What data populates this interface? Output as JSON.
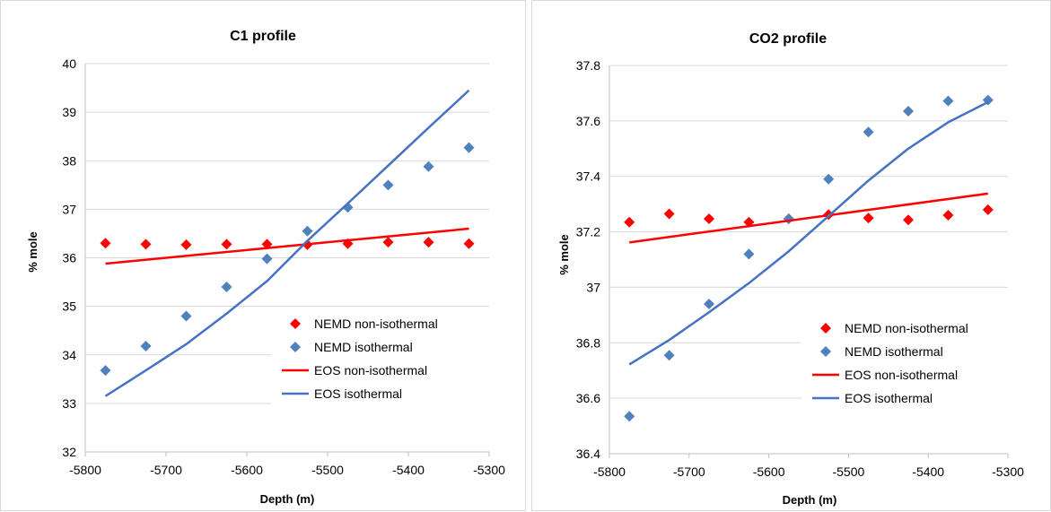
{
  "chart_data": [
    {
      "type": "scatter",
      "title": "C1 profile",
      "xlabel": "Depth (m)",
      "ylabel": "% mole",
      "xlim": [
        -5800,
        -5300
      ],
      "ylim": [
        32,
        40
      ],
      "xticks": [
        -5800,
        -5700,
        -5600,
        -5500,
        -5400,
        -5300
      ],
      "yticks": [
        32,
        33,
        34,
        35,
        36,
        37,
        38,
        39,
        40
      ],
      "xtick_labels": [
        "-5800",
        "-5700",
        "-5600",
        "-5500",
        "-5400",
        "-5300"
      ],
      "ytick_labels": [
        "32",
        "33",
        "34",
        "35",
        "36",
        "37",
        "38",
        "39",
        "40"
      ],
      "grid": "horizontal",
      "legend_position": "bottom-right",
      "series": [
        {
          "name": "NEMD non-isothermal",
          "kind": "marker",
          "marker": "diamond",
          "color": "#ff0000",
          "x": [
            -5775,
            -5725,
            -5675,
            -5625,
            -5575,
            -5525,
            -5475,
            -5425,
            -5375,
            -5325
          ],
          "y": [
            36.3,
            36.28,
            36.27,
            36.28,
            36.28,
            36.27,
            36.29,
            36.32,
            36.32,
            36.29
          ]
        },
        {
          "name": "NEMD isothermal",
          "kind": "marker",
          "marker": "diamond",
          "color": "#4f81bd",
          "x": [
            -5775,
            -5725,
            -5675,
            -5625,
            -5575,
            -5525,
            -5475,
            -5425,
            -5375,
            -5325
          ],
          "y": [
            33.68,
            34.18,
            34.8,
            35.4,
            35.98,
            36.55,
            37.04,
            37.5,
            37.88,
            38.27
          ]
        },
        {
          "name": "EOS non-isothermal",
          "kind": "line",
          "color": "#ff0000",
          "x": [
            -5775,
            -5325
          ],
          "y": [
            35.88,
            36.6
          ]
        },
        {
          "name": "EOS isothermal",
          "kind": "line",
          "color": "#4472c4",
          "x": [
            -5775,
            -5725,
            -5675,
            -5625,
            -5575,
            -5525,
            -5475,
            -5425,
            -5375,
            -5325
          ],
          "y": [
            33.15,
            33.68,
            34.22,
            34.85,
            35.52,
            36.35,
            37.12,
            37.9,
            38.68,
            39.45
          ]
        }
      ]
    },
    {
      "type": "scatter",
      "title": "CO2 profile",
      "xlabel": "Depth (m)",
      "ylabel": "% mole",
      "xlim": [
        -5800,
        -5300
      ],
      "ylim": [
        36.4,
        37.8
      ],
      "xticks": [
        -5800,
        -5700,
        -5600,
        -5500,
        -5400,
        -5300
      ],
      "yticks": [
        36.4,
        36.6,
        36.8,
        37.0,
        37.2,
        37.4,
        37.6,
        37.8
      ],
      "xtick_labels": [
        "-5800",
        "-5700",
        "-5600",
        "-5500",
        "-5400",
        "-5300"
      ],
      "ytick_labels": [
        "36.4",
        "36.6",
        "36.8",
        "37",
        "37.2",
        "37.4",
        "37.6",
        "37.8"
      ],
      "grid": "horizontal",
      "legend_position": "bottom-right",
      "series": [
        {
          "name": "NEMD non-isothermal",
          "kind": "marker",
          "marker": "diamond",
          "color": "#ff0000",
          "x": [
            -5775,
            -5725,
            -5675,
            -5625,
            -5575,
            -5525,
            -5475,
            -5425,
            -5375,
            -5325
          ],
          "y": [
            37.235,
            37.265,
            37.247,
            37.235,
            37.247,
            37.262,
            37.25,
            37.243,
            37.26,
            37.28
          ]
        },
        {
          "name": "NEMD isothermal",
          "kind": "marker",
          "marker": "diamond",
          "color": "#4f81bd",
          "x": [
            -5775,
            -5725,
            -5675,
            -5625,
            -5575,
            -5525,
            -5475,
            -5425,
            -5375,
            -5325
          ],
          "y": [
            36.535,
            36.755,
            36.94,
            37.12,
            37.247,
            37.39,
            37.56,
            37.635,
            37.672,
            37.675
          ]
        },
        {
          "name": "EOS non-isothermal",
          "kind": "line",
          "color": "#ff0000",
          "x": [
            -5775,
            -5325
          ],
          "y": [
            37.162,
            37.338
          ]
        },
        {
          "name": "EOS isothermal",
          "kind": "line",
          "color": "#4472c4",
          "x": [
            -5775,
            -5725,
            -5675,
            -5625,
            -5575,
            -5525,
            -5475,
            -5425,
            -5375,
            -5325
          ],
          "y": [
            36.722,
            36.81,
            36.91,
            37.015,
            37.13,
            37.257,
            37.385,
            37.5,
            37.595,
            37.668
          ]
        }
      ]
    }
  ]
}
